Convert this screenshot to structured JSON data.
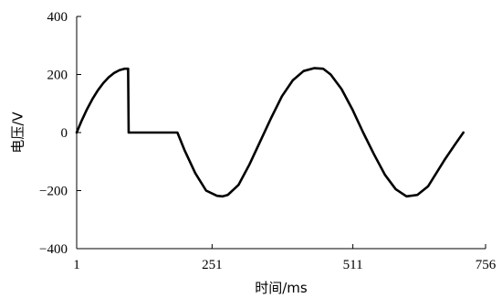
{
  "chart_data": {
    "type": "line",
    "title": "",
    "xlabel": "时间/ms",
    "ylabel": "电压/V",
    "xlim": [
      1,
      756
    ],
    "ylim": [
      -400,
      400
    ],
    "x_ticks": [
      1,
      251,
      511,
      756
    ],
    "y_ticks": [
      400,
      200,
      0,
      -200,
      -400
    ],
    "grid": false,
    "legend": "none",
    "series": [
      {
        "color": "#000000",
        "x": [
          1,
          10,
          20,
          30,
          40,
          50,
          60,
          70,
          80,
          90,
          96,
          97,
          110,
          130,
          150,
          170,
          187,
          200,
          220,
          240,
          260,
          270,
          280,
          300,
          320,
          340,
          360,
          380,
          400,
          420,
          440,
          456,
          470,
          490,
          510,
          530,
          550,
          570,
          590,
          610,
          630,
          650,
          665,
          680,
          700,
          715
        ],
        "y": [
          0,
          40,
          80,
          115,
          145,
          170,
          190,
          205,
          215,
          220,
          220,
          0,
          0,
          0,
          0,
          0,
          0,
          -60,
          -140,
          -200,
          -218,
          -220,
          -215,
          -180,
          -110,
          -30,
          50,
          125,
          180,
          212,
          222,
          220,
          200,
          150,
          80,
          0,
          -75,
          -145,
          -195,
          -220,
          -215,
          -185,
          -140,
          -95,
          -40,
          0
        ]
      }
    ]
  }
}
